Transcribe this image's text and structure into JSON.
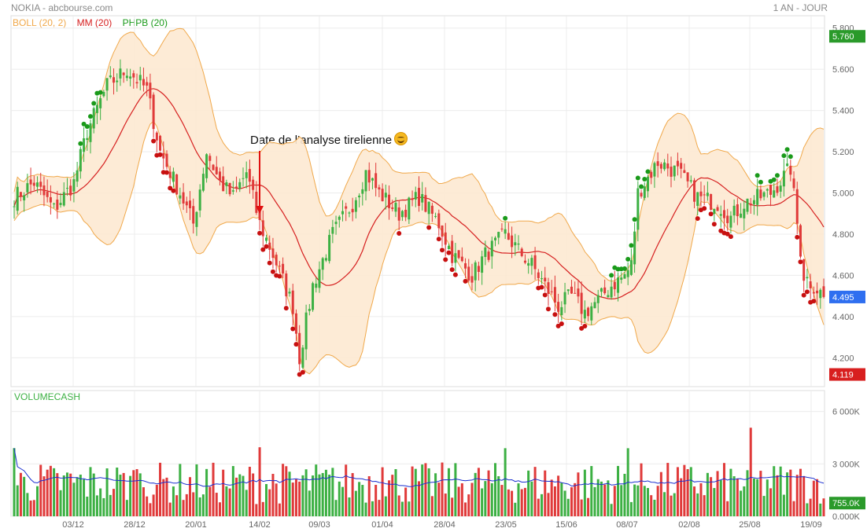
{
  "header": {
    "title": "NOKIA - abcbourse.com",
    "period": "1 AN - JOUR"
  },
  "legend": {
    "boll": "BOLL (20, 2)",
    "mm": "MM (20)",
    "phpb": "PHPB (20)"
  },
  "colors": {
    "up": "#3cb043",
    "down": "#e03a3a",
    "ma": "#d62020",
    "band": "#f0a84a",
    "bandFill": "#fde9d2",
    "volMa": "#1b2fd0",
    "markerUp": "#1a9a1a",
    "markerDown": "#c81010"
  },
  "annotation": "Date de l’analyse tirelienne",
  "volume_label": "VOLUMECASH",
  "price_axis": {
    "ticks": [
      "5.800",
      "5.600",
      "5.400",
      "5.200",
      "5.000",
      "4.800",
      "4.600",
      "4.400",
      "4.200"
    ]
  },
  "badges": {
    "high": "5.760",
    "last": "4.495",
    "low": "4.119"
  },
  "volume_axis": {
    "ticks": [
      "6 000K",
      "3 000K",
      "0.000K"
    ],
    "last_ma": "755.0K"
  },
  "chart_data": {
    "type": "candlestick",
    "x_ticks": [
      "03/12",
      "28/12",
      "20/01",
      "14/02",
      "09/03",
      "01/04",
      "28/04",
      "23/05",
      "15/06",
      "08/07",
      "02/08",
      "25/08",
      "19/09"
    ],
    "y_range": [
      4.06,
      5.86
    ],
    "volume_range_k": [
      0,
      7200
    ],
    "close_anchors": [
      [
        0,
        4.98
      ],
      [
        6,
        5.05
      ],
      [
        12,
        4.92
      ],
      [
        18,
        5.05
      ],
      [
        22,
        5.3
      ],
      [
        28,
        5.52
      ],
      [
        34,
        5.6
      ],
      [
        40,
        5.5
      ],
      [
        44,
        5.2
      ],
      [
        50,
        5.0
      ],
      [
        54,
        4.85
      ],
      [
        58,
        5.2
      ],
      [
        62,
        5.05
      ],
      [
        66,
        4.98
      ],
      [
        70,
        5.1
      ],
      [
        74,
        4.85
      ],
      [
        78,
        4.7
      ],
      [
        84,
        4.45
      ],
      [
        86,
        4.2
      ],
      [
        90,
        4.55
      ],
      [
        96,
        4.8
      ],
      [
        102,
        4.95
      ],
      [
        106,
        5.1
      ],
      [
        110,
        5.0
      ],
      [
        116,
        4.9
      ],
      [
        122,
        4.98
      ],
      [
        128,
        4.85
      ],
      [
        132,
        4.7
      ],
      [
        138,
        4.6
      ],
      [
        142,
        4.7
      ],
      [
        148,
        4.8
      ],
      [
        152,
        4.72
      ],
      [
        156,
        4.65
      ],
      [
        160,
        4.55
      ],
      [
        164,
        4.45
      ],
      [
        168,
        4.5
      ],
      [
        172,
        4.42
      ],
      [
        176,
        4.48
      ],
      [
        180,
        4.55
      ],
      [
        184,
        4.6
      ],
      [
        186,
        4.65
      ],
      [
        188,
        5.0
      ],
      [
        194,
        5.15
      ],
      [
        200,
        5.1
      ],
      [
        206,
        4.98
      ],
      [
        212,
        4.95
      ],
      [
        216,
        4.88
      ],
      [
        220,
        4.95
      ],
      [
        228,
        5.0
      ],
      [
        234,
        5.12
      ],
      [
        236,
        4.85
      ],
      [
        238,
        4.6
      ],
      [
        244,
        4.5
      ]
    ],
    "annotation_date": "14/02",
    "last_close": 4.495,
    "high": 5.76,
    "low": 4.119
  }
}
